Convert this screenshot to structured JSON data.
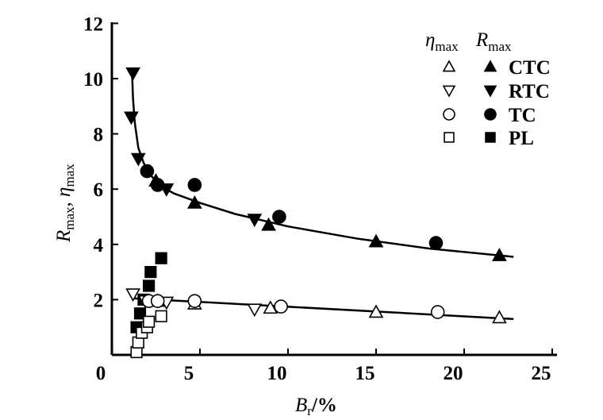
{
  "chart_data": {
    "type": "scatter",
    "xlabel": {
      "main": "B",
      "sub": "r",
      "suffix": "/%"
    },
    "ylabel": {
      "a": "R",
      "a_sub": "max",
      "sep": ", ",
      "b": "η",
      "b_sub": "max"
    },
    "xlim": [
      0,
      25
    ],
    "ylim": [
      0,
      12
    ],
    "xticks": [
      0,
      5,
      10,
      15,
      20,
      25
    ],
    "yticks": [
      2,
      4,
      6,
      8,
      10,
      12
    ],
    "grid": false,
    "legend": {
      "placement": "top-right",
      "col_headers": [
        {
          "main": "η",
          "sub": "max"
        },
        {
          "main": "R",
          "sub": "max"
        }
      ],
      "entries": [
        "CTC",
        "RTC",
        "TC",
        "PL"
      ]
    },
    "series": [
      {
        "name": "CTC",
        "metric": "R_max",
        "marker": "triangle-up",
        "filled": true,
        "x": [
          2.5,
          4.7,
          8.9,
          15.0,
          22.0
        ],
        "y": [
          6.3,
          5.5,
          4.7,
          4.1,
          3.6
        ]
      },
      {
        "name": "RTC",
        "metric": "R_max",
        "marker": "triangle-down",
        "filled": true,
        "x": [
          1.2,
          1.1,
          1.5,
          3.1,
          8.1
        ],
        "y": [
          10.2,
          8.6,
          7.1,
          6.0,
          4.9
        ]
      },
      {
        "name": "TC",
        "metric": "R_max",
        "marker": "circle",
        "filled": true,
        "x": [
          2.0,
          2.6,
          4.7,
          9.5,
          18.4
        ],
        "y": [
          6.65,
          6.15,
          6.15,
          5.0,
          4.05
        ]
      },
      {
        "name": "PL",
        "metric": "R_max",
        "marker": "square",
        "filled": true,
        "x": [
          1.4,
          1.6,
          1.8,
          2.1,
          2.2,
          2.8
        ],
        "y": [
          1.0,
          1.5,
          2.0,
          2.5,
          3.0,
          3.5
        ]
      },
      {
        "name": "CTC",
        "metric": "η_max",
        "marker": "triangle-up",
        "filled": false,
        "x": [
          2.6,
          4.7,
          9.0,
          15.0,
          22.0
        ],
        "y": [
          1.95,
          1.85,
          1.7,
          1.55,
          1.35
        ]
      },
      {
        "name": "RTC",
        "metric": "η_max",
        "marker": "triangle-down",
        "filled": false,
        "x": [
          1.2,
          1.9,
          3.1,
          8.1
        ],
        "y": [
          2.2,
          1.95,
          1.9,
          1.65
        ]
      },
      {
        "name": "TC",
        "metric": "η_max",
        "marker": "circle",
        "filled": false,
        "x": [
          2.1,
          2.6,
          4.7,
          9.6,
          18.5
        ],
        "y": [
          1.95,
          1.95,
          1.95,
          1.75,
          1.55
        ]
      },
      {
        "name": "PL",
        "metric": "η_max",
        "marker": "square",
        "filled": false,
        "x": [
          1.4,
          1.5,
          1.7,
          2.0,
          2.1,
          2.8
        ],
        "y": [
          0.1,
          0.45,
          0.8,
          1.0,
          1.2,
          1.4
        ]
      }
    ],
    "fits": [
      {
        "name": "R_max fit",
        "x": [
          1.15,
          1.2,
          1.3,
          1.5,
          1.8,
          2.2,
          2.8,
          3.5,
          5,
          7,
          10,
          14,
          18,
          22.8
        ],
        "y": [
          10.2,
          9.3,
          8.4,
          7.5,
          6.95,
          6.5,
          6.1,
          5.85,
          5.5,
          5.1,
          4.65,
          4.2,
          3.85,
          3.55
        ]
      },
      {
        "name": "η_max fit",
        "x": [
          1.2,
          22.8
        ],
        "y": [
          2.05,
          1.3
        ]
      }
    ]
  }
}
